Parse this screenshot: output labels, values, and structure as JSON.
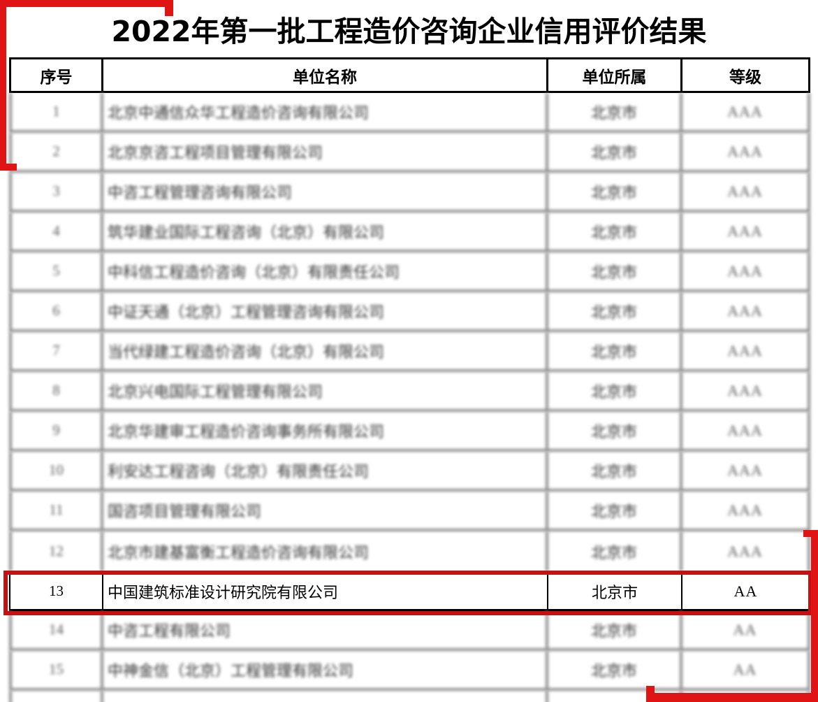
{
  "title": "2022年第一批工程造价咨询企业信用评价结果",
  "table": {
    "headers": [
      "序号",
      "单位名称",
      "单位所属",
      "等级"
    ],
    "rows": [
      {
        "no": "1",
        "name": "北京中通信众华工程造价咨询有限公司",
        "region": "北京市",
        "grade": "AAA",
        "blurred": true
      },
      {
        "no": "2",
        "name": "北京京咨工程项目管理有限公司",
        "region": "北京市",
        "grade": "AAA",
        "blurred": true
      },
      {
        "no": "3",
        "name": "中咨工程管理咨询有限公司",
        "region": "北京市",
        "grade": "AAA",
        "blurred": true
      },
      {
        "no": "4",
        "name": "筑华建业国际工程咨询（北京）有限公司",
        "region": "北京市",
        "grade": "AAA",
        "blurred": true
      },
      {
        "no": "5",
        "name": "中科信工程造价咨询（北京）有限责任公司",
        "region": "北京市",
        "grade": "AAA",
        "blurred": true
      },
      {
        "no": "6",
        "name": "中证天通（北京）工程管理咨询有限公司",
        "region": "北京市",
        "grade": "AAA",
        "blurred": true
      },
      {
        "no": "7",
        "name": "当代绿建工程造价咨询（北京）有限公司",
        "region": "北京市",
        "grade": "AAA",
        "blurred": true
      },
      {
        "no": "8",
        "name": "北京兴电国际工程管理有限公司",
        "region": "北京市",
        "grade": "AAA",
        "blurred": true
      },
      {
        "no": "9",
        "name": "北京华建审工程造价咨询事务所有限公司",
        "region": "北京市",
        "grade": "AAA",
        "blurred": true
      },
      {
        "no": "10",
        "name": "利安达工程咨询（北京）有限责任公司",
        "region": "北京市",
        "grade": "AAA",
        "blurred": true
      },
      {
        "no": "11",
        "name": "国咨项目管理有限公司",
        "region": "北京市",
        "grade": "AAA",
        "blurred": true
      },
      {
        "no": "12",
        "name": "北京市建基富衡工程造价咨询有限公司",
        "region": "北京市",
        "grade": "AAA",
        "blurred": true
      },
      {
        "no": "13",
        "name": "中国建筑标准设计研究院有限公司",
        "region": "北京市",
        "grade": "AA",
        "blurred": false,
        "highlighted": true
      },
      {
        "no": "14",
        "name": "中咨工程有限公司",
        "region": "北京市",
        "grade": "AA",
        "blurred": true
      },
      {
        "no": "15",
        "name": "中神金信（北京）工程管理有限公司",
        "region": "北京市",
        "grade": "AA",
        "blurred": true
      }
    ]
  },
  "annotations": {
    "highlighted_row_no": "13",
    "highlight_box_color": "#c31212",
    "bracket_color": "#e01414"
  }
}
